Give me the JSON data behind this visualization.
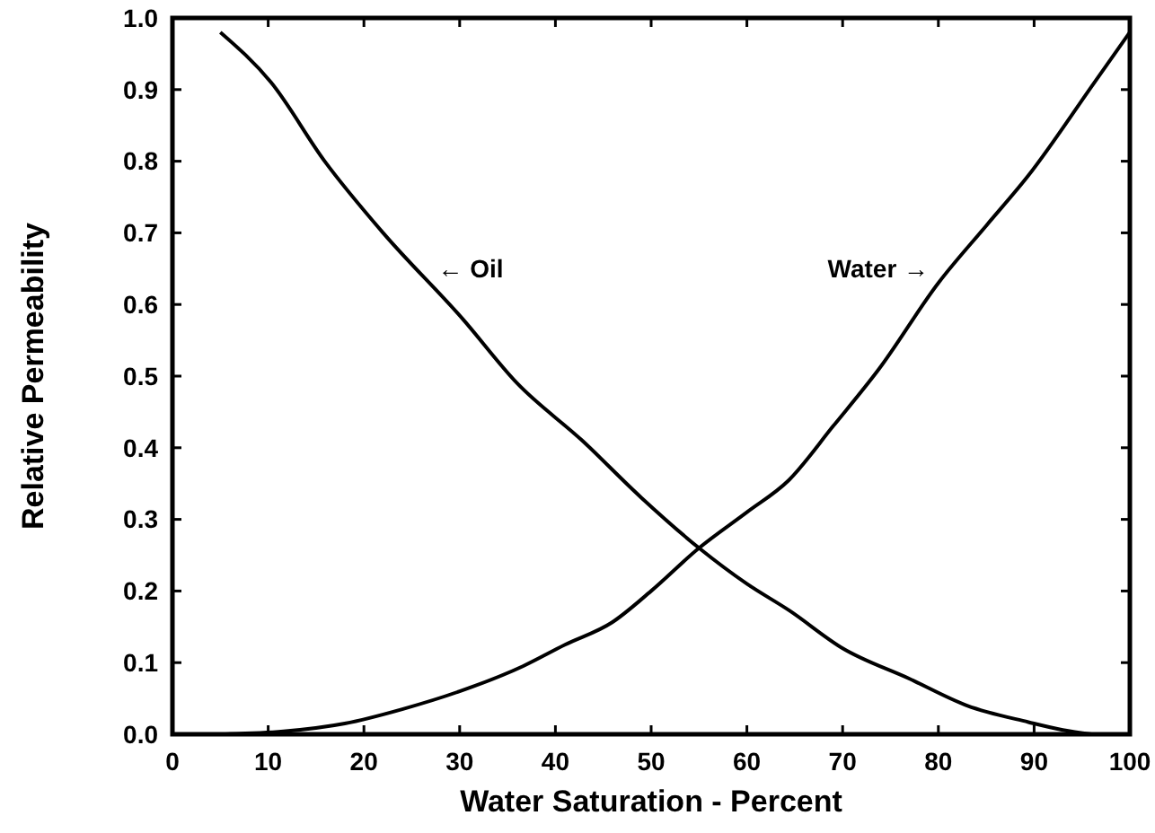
{
  "chart_data": {
    "type": "line",
    "xlabel": "Water Saturation - Percent",
    "ylabel": "Relative Permeability",
    "xlim": [
      0,
      100
    ],
    "ylim": [
      0,
      1
    ],
    "xticks": [
      0,
      10,
      20,
      30,
      40,
      50,
      60,
      70,
      80,
      90,
      100
    ],
    "yticks": [
      {
        "value": 0,
        "label": "0.0"
      },
      0.1,
      0.2,
      0.3,
      0.4,
      0.5,
      0.6,
      0.7,
      0.8,
      0.9,
      {
        "value": 1,
        "label": "1.0"
      }
    ],
    "grid": false,
    "marker": "none",
    "line_style": "solid",
    "series": [
      {
        "color": "#000000",
        "x": [
          5,
          10.3,
          15.9,
          22,
          30.3,
          36,
          42.8,
          49,
          55,
          60,
          64.4,
          70,
          76.9,
          83,
          89.4,
          93,
          96
        ],
        "values": [
          0.98,
          0.91,
          0.8,
          0.7,
          0.58,
          0.49,
          0.41,
          0.33,
          0.26,
          0.21,
          0.173,
          0.12,
          0.078,
          0.04,
          0.017,
          0.006,
          0
        ]
      },
      {
        "color": "#000000",
        "x": [
          5,
          11.6,
          18,
          24,
          30,
          36.6,
          41,
          45.9,
          50,
          55,
          60,
          64.4,
          69,
          73.8,
          80,
          85,
          89.4,
          96.3,
          100
        ],
        "values": [
          0,
          0.004,
          0.015,
          0.035,
          0.06,
          0.095,
          0.125,
          0.156,
          0.2,
          0.26,
          0.31,
          0.355,
          0.43,
          0.51,
          0.63,
          0.71,
          0.78,
          0.91,
          0.98
        ]
      }
    ],
    "annotations": [
      "← Oil",
      "Water →"
    ]
  }
}
